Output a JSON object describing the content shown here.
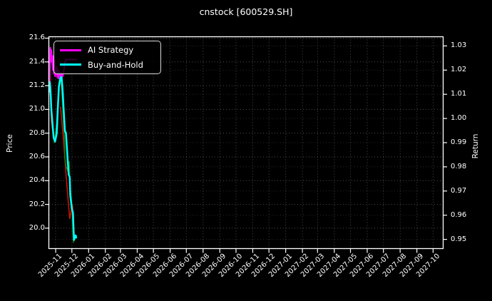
{
  "window": {
    "kind": "matplotlib-style-figure",
    "background": "#000000"
  },
  "title": "cnstock [600529.SH]",
  "legend": {
    "entries": [
      {
        "label": "AI Strategy",
        "color": "#ff00ff"
      },
      {
        "label": "Buy-and-Hold",
        "color": "#00ffff"
      }
    ]
  },
  "axes": {
    "left": {
      "label": "Price",
      "tick_labels": [
        "21.6",
        "21.4",
        "21.2",
        "21.0",
        "20.8",
        "20.6",
        "20.4",
        "20.2",
        "20.0"
      ]
    },
    "right": {
      "label": "Return",
      "tick_labels": [
        "1.03",
        "1.02",
        "1.01",
        "1.00",
        "0.99",
        "0.98",
        "0.97",
        "0.96",
        "0.95"
      ]
    },
    "bottom": {
      "tick_labels": [
        "2025-11",
        "2025-12",
        "2026-01",
        "2026-02",
        "2026-03",
        "2026-04",
        "2026-05",
        "2026-06",
        "2026-07",
        "2026-08",
        "2026-09",
        "2026-10",
        "2026-11",
        "2026-12",
        "2027-01",
        "2027-02",
        "2027-03",
        "2027-04",
        "2027-05",
        "2027-06",
        "2027-07",
        "2027-08",
        "2027-09",
        "2027-10"
      ]
    }
  },
  "chart_data": {
    "type": "line",
    "title": "cnstock [600529.SH]",
    "xlabel": "",
    "ylabel_left": "Price",
    "ylabel_right": "Return",
    "xlim": [
      "2025-10-20",
      "2027-10-19"
    ],
    "ylim_price": [
      19.828,
      21.612
    ],
    "ylim_return": [
      0.9462,
      1.0338
    ],
    "grid": true,
    "legend_position": "upper-left",
    "x_tick_interval": "1 month",
    "price_ticks": [
      21.6,
      21.4,
      21.2,
      21.0,
      20.8,
      20.6,
      20.4,
      20.2,
      20.0
    ],
    "return_ticks": [
      1.03,
      1.02,
      1.01,
      1.0,
      0.99,
      0.98,
      0.97,
      0.96,
      0.95
    ],
    "series": [
      {
        "name": "AI Strategy",
        "color": "#ff00ff",
        "linewidth": 2.2,
        "axis": "price",
        "points": [
          [
            "2025-10-20",
            21.18
          ],
          [
            "2025-10-21",
            21.34
          ],
          [
            "2025-10-22",
            21.52
          ],
          [
            "2025-10-23",
            21.4
          ],
          [
            "2025-10-24",
            21.5
          ],
          [
            "2025-10-27",
            21.33
          ],
          [
            "2025-10-28",
            21.45
          ],
          [
            "2025-10-29",
            21.3
          ],
          [
            "2025-10-30",
            21.42
          ],
          [
            "2025-10-31",
            21.28
          ],
          [
            "2025-11-03",
            21.36
          ],
          [
            "2025-11-04",
            21.27
          ],
          [
            "2025-11-05",
            21.33
          ],
          [
            "2025-11-06",
            21.26
          ],
          [
            "2025-11-07",
            21.32
          ],
          [
            "2025-11-10",
            21.27
          ],
          [
            "2025-11-11",
            21.31
          ],
          [
            "2025-11-12",
            21.27
          ],
          [
            "2025-11-13",
            21.3
          ],
          [
            "2025-11-14",
            21.28
          ],
          [
            "2025-11-17",
            21.35
          ],
          [
            "2025-11-18",
            21.4
          ],
          [
            "2025-11-20",
            21.42
          ],
          [
            "2025-11-24",
            21.42
          ],
          [
            "2025-11-27",
            21.42
          ],
          [
            "2025-12-01",
            21.42
          ],
          [
            "2025-12-04",
            21.42
          ],
          [
            "2025-12-09",
            21.42
          ]
        ]
      },
      {
        "name": "Buy-and-Hold",
        "color": "#00ffff",
        "linewidth": 2.5,
        "axis": "price",
        "points": [
          [
            "2025-10-20",
            21.15
          ],
          [
            "2025-10-21",
            21.23
          ],
          [
            "2025-10-22",
            21.19
          ],
          [
            "2025-10-23",
            21.1
          ],
          [
            "2025-10-24",
            21.0
          ],
          [
            "2025-10-27",
            20.83
          ],
          [
            "2025-10-28",
            20.77
          ],
          [
            "2025-10-29",
            20.75
          ],
          [
            "2025-10-31",
            20.73
          ],
          [
            "2025-11-03",
            20.8
          ],
          [
            "2025-11-05",
            21.01
          ],
          [
            "2025-11-07",
            21.19
          ],
          [
            "2025-11-10",
            21.27
          ],
          [
            "2025-11-12",
            21.27
          ],
          [
            "2025-11-14",
            21.15
          ],
          [
            "2025-11-17",
            20.9
          ],
          [
            "2025-11-18",
            20.82
          ],
          [
            "2025-11-20",
            20.8
          ],
          [
            "2025-11-24",
            20.52
          ],
          [
            "2025-11-25",
            20.45
          ],
          [
            "2025-11-27",
            20.43
          ],
          [
            "2025-11-28",
            20.28
          ],
          [
            "2025-12-01",
            20.16
          ],
          [
            "2025-12-03",
            20.13
          ],
          [
            "2025-12-04",
            20.0
          ],
          [
            "2025-12-05",
            19.9
          ],
          [
            "2025-12-08",
            19.94
          ],
          [
            "2025-12-09",
            19.92
          ]
        ]
      }
    ],
    "unlabeled_overlay_segments": [
      {
        "name": "red-overlay-segment-1",
        "color": "#cc1400",
        "linewidth": 1.6,
        "points": [
          [
            "2025-10-20",
            21.26
          ],
          [
            "2025-10-21",
            21.37
          ],
          [
            "2025-10-22",
            21.18
          ],
          [
            "2025-10-23",
            21.0
          ],
          [
            "2025-10-24",
            20.9
          ],
          [
            "2025-10-27",
            20.8
          ]
        ]
      },
      {
        "name": "red-overlay-segment-2",
        "color": "#cc1400",
        "linewidth": 1.6,
        "points": [
          [
            "2025-11-10",
            21.02
          ],
          [
            "2025-11-14",
            20.82
          ],
          [
            "2025-11-17",
            20.65
          ],
          [
            "2025-11-20",
            20.46
          ],
          [
            "2025-11-24",
            20.24
          ],
          [
            "2025-11-27",
            20.08
          ],
          [
            "2025-12-02",
            20.2
          ],
          [
            "2025-12-04",
            20.1
          ],
          [
            "2025-12-05",
            19.95
          ]
        ]
      },
      {
        "name": "green-overlay-segment-1",
        "color": "#0c7c0c",
        "linewidth": 1.6,
        "points": [
          [
            "2025-10-29",
            20.72
          ],
          [
            "2025-10-31",
            20.78
          ],
          [
            "2025-11-03",
            20.88
          ],
          [
            "2025-11-05",
            21.06
          ],
          [
            "2025-11-07",
            21.22
          ],
          [
            "2025-11-10",
            21.3
          ],
          [
            "2025-11-12",
            21.18
          ],
          [
            "2025-11-14",
            21.02
          ],
          [
            "2025-11-17",
            20.78
          ],
          [
            "2025-11-18",
            20.6
          ],
          [
            "2025-11-20",
            20.52
          ],
          [
            "2025-11-24",
            20.48
          ],
          [
            "2025-11-26",
            20.56
          ],
          [
            "2025-11-27",
            20.42
          ],
          [
            "2025-11-28",
            20.34
          ],
          [
            "2025-12-01",
            20.2
          ],
          [
            "2025-12-03",
            19.96
          ],
          [
            "2025-12-04",
            19.88
          ]
        ]
      }
    ],
    "style": {
      "grid_color": "rgba(255,255,255,0.30)",
      "grid_color_secondary": "rgba(255,255,255,0.16)",
      "spine_color": "#ffffff",
      "text_color": "#ffffff"
    }
  }
}
